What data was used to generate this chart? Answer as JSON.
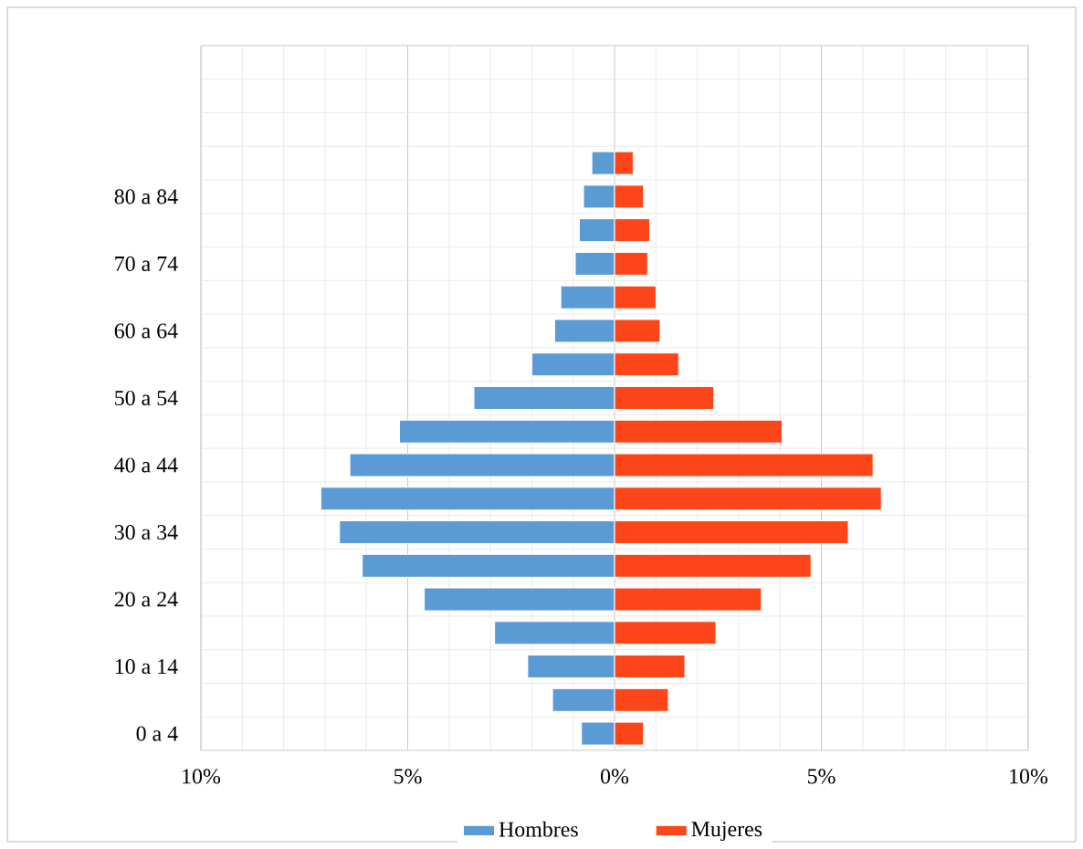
{
  "chart_data": {
    "type": "bar",
    "orientation": "horizontal",
    "categories": [
      null,
      null,
      null,
      null,
      "80 a 84",
      null,
      "70 a 74",
      null,
      "60 a 64",
      null,
      "50 a 54",
      null,
      "40 a 44",
      null,
      "30 a 34",
      null,
      "20 a 24",
      null,
      "10 a 14",
      null,
      "0 a 4"
    ],
    "series": [
      {
        "name": "Hombres",
        "color": "#5b9bd5",
        "values": [
          null,
          null,
          null,
          -0.55,
          -0.75,
          -0.85,
          -0.95,
          -1.3,
          -1.45,
          -2.0,
          -3.4,
          -5.2,
          -6.4,
          -7.1,
          -6.65,
          -6.1,
          -4.6,
          -2.9,
          -2.1,
          -1.5,
          -0.8
        ]
      },
      {
        "name": "Mujeres",
        "color": "#fc4619",
        "values": [
          null,
          null,
          null,
          0.45,
          0.7,
          0.85,
          0.8,
          1.0,
          1.1,
          1.55,
          2.4,
          4.05,
          6.25,
          6.45,
          5.65,
          4.75,
          3.55,
          2.45,
          1.7,
          1.3,
          0.7
        ]
      }
    ],
    "xlim": [
      -10,
      10
    ],
    "xticks": [
      {
        "value": -10,
        "label": "10%"
      },
      {
        "value": -5,
        "label": "5%"
      },
      {
        "value": 0,
        "label": "0%"
      },
      {
        "value": 5,
        "label": "5%"
      },
      {
        "value": 10,
        "label": "10%"
      }
    ],
    "stacked": true,
    "grid": true,
    "legend": "bottom"
  }
}
